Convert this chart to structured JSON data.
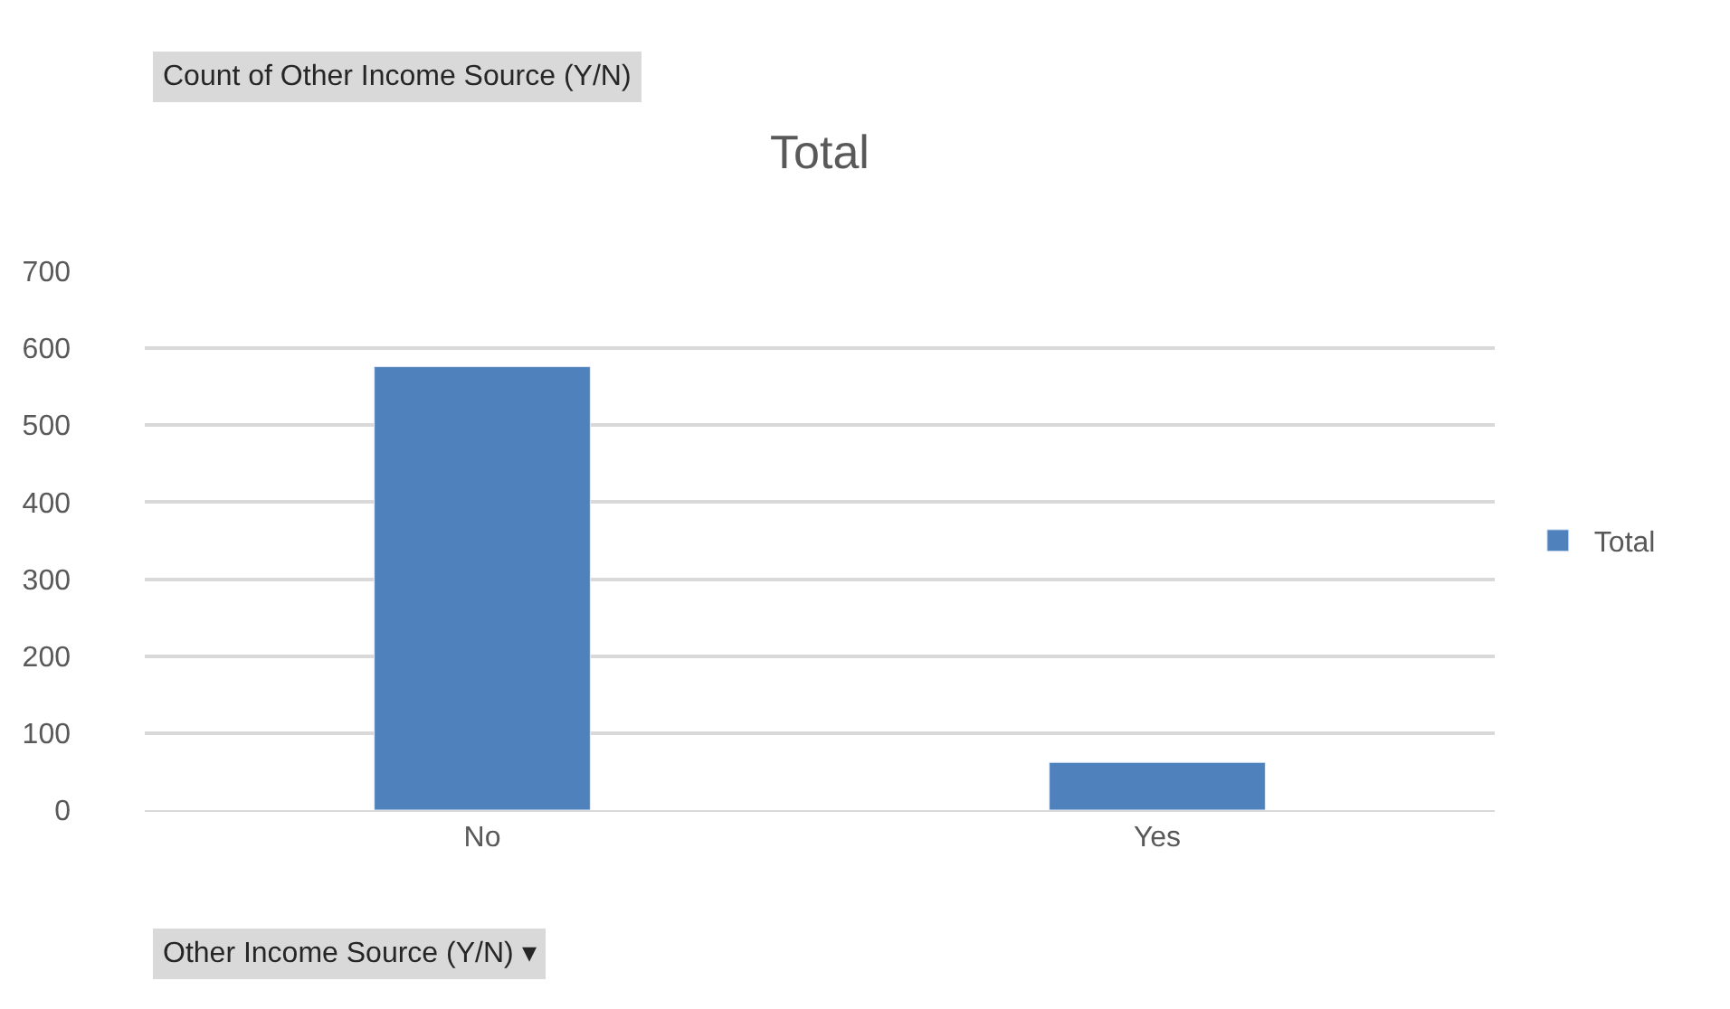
{
  "chart_data": {
    "type": "bar",
    "title": "Total",
    "categories": [
      "No",
      "Yes"
    ],
    "series": [
      {
        "name": "Total",
        "color": "#4f81bd",
        "values": [
          576,
          62
        ]
      }
    ],
    "ylim": [
      0,
      700
    ],
    "yticks": [
      0,
      100,
      200,
      300,
      400,
      500,
      600,
      700
    ],
    "grid": "y",
    "legend": "right",
    "annotations": [
      "Count of Other Income Source (Y/N)",
      "Other Income Source (Y/N) ▾"
    ]
  }
}
